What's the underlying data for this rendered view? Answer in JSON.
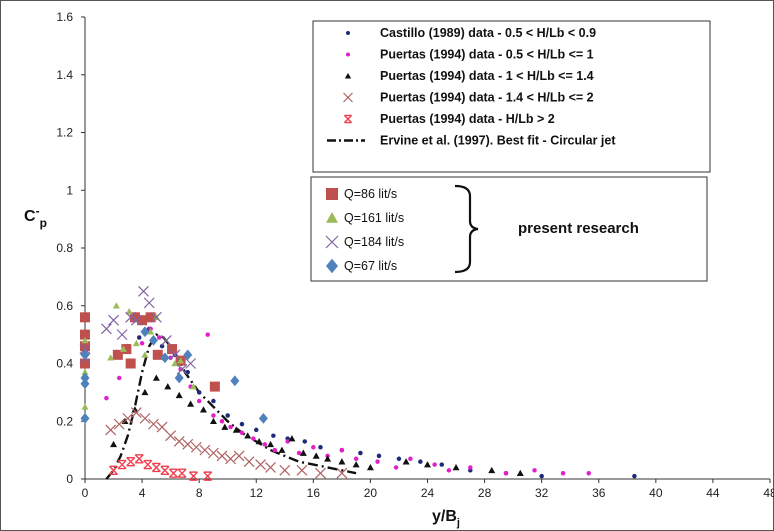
{
  "chart_data": {
    "type": "scatter",
    "xlabel": "y/B",
    "xlabel_sub": "j",
    "ylabel": "C",
    "ylabel_sup": "-",
    "ylabel_sub": "p",
    "xlim": [
      0,
      48
    ],
    "ylim": [
      0,
      1.6
    ],
    "x_ticks": [
      "0",
      "4",
      "8",
      "12",
      "16",
      "20",
      "24",
      "28",
      "32",
      "36",
      "40",
      "44",
      "48"
    ],
    "y_ticks": [
      "0",
      "0.2",
      "0.4",
      "0.6",
      "0.8",
      "1",
      "1.2",
      "1.4",
      "1.6"
    ],
    "legend_position": "top-right",
    "series": [
      {
        "name": "Castillo (1989) data - 0.5 < H/Lb < 0.9",
        "marker": "dot",
        "color": "#1f2a7a",
        "points": [
          [
            2.2,
            0.44
          ],
          [
            3.0,
            0.46
          ],
          [
            3.8,
            0.49
          ],
          [
            4.5,
            0.52
          ],
          [
            5.4,
            0.46
          ],
          [
            6.3,
            0.43
          ],
          [
            7.2,
            0.37
          ],
          [
            8.0,
            0.3
          ],
          [
            9.0,
            0.27
          ],
          [
            10.0,
            0.22
          ],
          [
            11.0,
            0.19
          ],
          [
            12.0,
            0.17
          ],
          [
            13.2,
            0.15
          ],
          [
            14.2,
            0.14
          ],
          [
            15.4,
            0.13
          ],
          [
            16.5,
            0.11
          ],
          [
            18.0,
            0.1
          ],
          [
            19.3,
            0.09
          ],
          [
            20.6,
            0.08
          ],
          [
            22.0,
            0.07
          ],
          [
            23.5,
            0.06
          ],
          [
            25.0,
            0.05
          ],
          [
            27.0,
            0.03
          ],
          [
            29.5,
            0.02
          ],
          [
            32.0,
            0.01
          ],
          [
            38.5,
            0.01
          ]
        ]
      },
      {
        "name": "Puertas (1994) data - 0.5 < H/Lb <= 1",
        "marker": "dot",
        "color": "#e020c8",
        "points": [
          [
            1.5,
            0.28
          ],
          [
            2.4,
            0.35
          ],
          [
            3.2,
            0.41
          ],
          [
            4.0,
            0.47
          ],
          [
            4.6,
            0.52
          ],
          [
            5.2,
            0.49
          ],
          [
            6.0,
            0.42
          ],
          [
            6.7,
            0.38
          ],
          [
            7.4,
            0.32
          ],
          [
            8.0,
            0.27
          ],
          [
            8.6,
            0.5
          ],
          [
            9.0,
            0.22
          ],
          [
            9.6,
            0.2
          ],
          [
            10.2,
            0.18
          ],
          [
            11.0,
            0.16
          ],
          [
            11.8,
            0.14
          ],
          [
            12.6,
            0.12
          ],
          [
            13.3,
            0.1
          ],
          [
            14.2,
            0.13
          ],
          [
            15.0,
            0.09
          ],
          [
            16.0,
            0.11
          ],
          [
            17.0,
            0.08
          ],
          [
            18.0,
            0.1
          ],
          [
            19.0,
            0.07
          ],
          [
            20.5,
            0.06
          ],
          [
            21.8,
            0.04
          ],
          [
            22.8,
            0.07
          ],
          [
            24.5,
            0.05
          ],
          [
            25.5,
            0.03
          ],
          [
            27.0,
            0.04
          ],
          [
            29.5,
            0.02
          ],
          [
            31.5,
            0.03
          ],
          [
            33.5,
            0.02
          ],
          [
            35.3,
            0.02
          ]
        ]
      },
      {
        "name": "Puertas (1994) data - 1 < H/Lb <= 1.4",
        "marker": "triangle",
        "color": "#111111",
        "points": [
          [
            2.0,
            0.12
          ],
          [
            2.8,
            0.2
          ],
          [
            3.5,
            0.24
          ],
          [
            4.2,
            0.3
          ],
          [
            5.0,
            0.35
          ],
          [
            5.8,
            0.32
          ],
          [
            6.6,
            0.29
          ],
          [
            7.4,
            0.26
          ],
          [
            8.3,
            0.24
          ],
          [
            9.0,
            0.2
          ],
          [
            9.8,
            0.18
          ],
          [
            10.6,
            0.17
          ],
          [
            11.4,
            0.15
          ],
          [
            12.2,
            0.13
          ],
          [
            13.0,
            0.12
          ],
          [
            13.8,
            0.1
          ],
          [
            14.5,
            0.14
          ],
          [
            15.3,
            0.09
          ],
          [
            16.2,
            0.08
          ],
          [
            17.0,
            0.07
          ],
          [
            18.0,
            0.06
          ],
          [
            19.0,
            0.05
          ],
          [
            20.0,
            0.04
          ],
          [
            22.5,
            0.06
          ],
          [
            24.0,
            0.05
          ],
          [
            26.0,
            0.04
          ],
          [
            28.5,
            0.03
          ],
          [
            30.5,
            0.02
          ]
        ]
      },
      {
        "name": "Puertas (1994) data - 1.4 < H/Lb <= 2",
        "marker": "x",
        "color": "#b06060",
        "points": [
          [
            1.8,
            0.17
          ],
          [
            2.4,
            0.19
          ],
          [
            3.0,
            0.21
          ],
          [
            3.6,
            0.23
          ],
          [
            4.2,
            0.21
          ],
          [
            4.8,
            0.19
          ],
          [
            5.4,
            0.18
          ],
          [
            6.0,
            0.15
          ],
          [
            6.6,
            0.13
          ],
          [
            7.2,
            0.12
          ],
          [
            7.8,
            0.11
          ],
          [
            8.4,
            0.1
          ],
          [
            9.0,
            0.09
          ],
          [
            9.6,
            0.08
          ],
          [
            10.2,
            0.07
          ],
          [
            10.8,
            0.08
          ],
          [
            11.5,
            0.06
          ],
          [
            12.3,
            0.05
          ],
          [
            13.0,
            0.04
          ],
          [
            14.0,
            0.03
          ],
          [
            15.2,
            0.03
          ],
          [
            16.5,
            0.02
          ],
          [
            18.0,
            0.02
          ]
        ]
      },
      {
        "name": "Puertas (1994) data - H/Lb > 2",
        "marker": "asterisk",
        "color": "#f04050",
        "points": [
          [
            2.0,
            0.03
          ],
          [
            2.6,
            0.05
          ],
          [
            3.2,
            0.06
          ],
          [
            3.8,
            0.07
          ],
          [
            4.4,
            0.05
          ],
          [
            5.0,
            0.04
          ],
          [
            5.6,
            0.03
          ],
          [
            6.2,
            0.02
          ],
          [
            6.8,
            0.02
          ],
          [
            7.6,
            0.01
          ],
          [
            8.6,
            0.01
          ]
        ]
      },
      {
        "name": "Ervine et al. (1997). Best fit - Circular jet",
        "marker": "line",
        "color": "#111111",
        "points": [
          [
            1.5,
            0.0
          ],
          [
            2.0,
            0.03
          ],
          [
            2.5,
            0.08
          ],
          [
            3.0,
            0.15
          ],
          [
            3.5,
            0.25
          ],
          [
            4.0,
            0.37
          ],
          [
            4.5,
            0.46
          ],
          [
            5.0,
            0.5
          ],
          [
            5.5,
            0.49
          ],
          [
            6.0,
            0.46
          ],
          [
            6.5,
            0.42
          ],
          [
            7.0,
            0.37
          ],
          [
            8.0,
            0.3
          ],
          [
            9.0,
            0.25
          ],
          [
            10.0,
            0.2
          ],
          [
            11.0,
            0.16
          ],
          [
            12.0,
            0.13
          ],
          [
            13.0,
            0.1
          ],
          [
            14.0,
            0.08
          ],
          [
            15.0,
            0.06
          ],
          [
            17.0,
            0.04
          ],
          [
            19.0,
            0.02
          ]
        ]
      },
      {
        "name": "Q=86 lit/s",
        "marker": "square",
        "color": "#c0504d",
        "points": [
          [
            0,
            0.56
          ],
          [
            0,
            0.5
          ],
          [
            0,
            0.46
          ],
          [
            0,
            0.4
          ],
          [
            2.3,
            0.43
          ],
          [
            2.9,
            0.45
          ],
          [
            3.2,
            0.4
          ],
          [
            3.5,
            0.56
          ],
          [
            4.0,
            0.55
          ],
          [
            4.6,
            0.56
          ],
          [
            5.1,
            0.43
          ],
          [
            6.1,
            0.45
          ],
          [
            6.7,
            0.41
          ],
          [
            9.1,
            0.32
          ]
        ]
      },
      {
        "name": "Q=161 lit/s",
        "marker": "triangle",
        "color": "#9bbb59",
        "points": [
          [
            0,
            0.48
          ],
          [
            0,
            0.37
          ],
          [
            0,
            0.25
          ],
          [
            1.8,
            0.42
          ],
          [
            2.2,
            0.6
          ],
          [
            2.7,
            0.45
          ],
          [
            3.1,
            0.58
          ],
          [
            3.6,
            0.47
          ],
          [
            4.2,
            0.43
          ],
          [
            4.6,
            0.51
          ],
          [
            5.0,
            0.56
          ],
          [
            6.3,
            0.4
          ],
          [
            6.7,
            0.41
          ],
          [
            7.6,
            0.32
          ]
        ]
      },
      {
        "name": "Q=184 lit/s",
        "marker": "x",
        "color": "#8064a2",
        "points": [
          [
            0,
            0.45
          ],
          [
            0,
            0.42
          ],
          [
            1.5,
            0.52
          ],
          [
            2.0,
            0.55
          ],
          [
            2.6,
            0.5
          ],
          [
            3.2,
            0.56
          ],
          [
            3.6,
            0.55
          ],
          [
            4.1,
            0.65
          ],
          [
            4.5,
            0.61
          ],
          [
            5.0,
            0.56
          ],
          [
            5.7,
            0.48
          ],
          [
            6.3,
            0.43
          ],
          [
            6.8,
            0.38
          ],
          [
            7.4,
            0.4
          ]
        ]
      },
      {
        "name": "Q=67 lit/s",
        "marker": "diamond",
        "color": "#4f81bd",
        "points": [
          [
            0,
            0.43
          ],
          [
            0,
            0.35
          ],
          [
            0,
            0.33
          ],
          [
            0,
            0.21
          ],
          [
            4.2,
            0.51
          ],
          [
            4.8,
            0.48
          ],
          [
            5.6,
            0.42
          ],
          [
            6.6,
            0.35
          ],
          [
            7.2,
            0.43
          ],
          [
            10.5,
            0.34
          ],
          [
            12.5,
            0.21
          ]
        ]
      }
    ],
    "annotation": "present research"
  },
  "legend": {
    "title_marker": "—"
  }
}
